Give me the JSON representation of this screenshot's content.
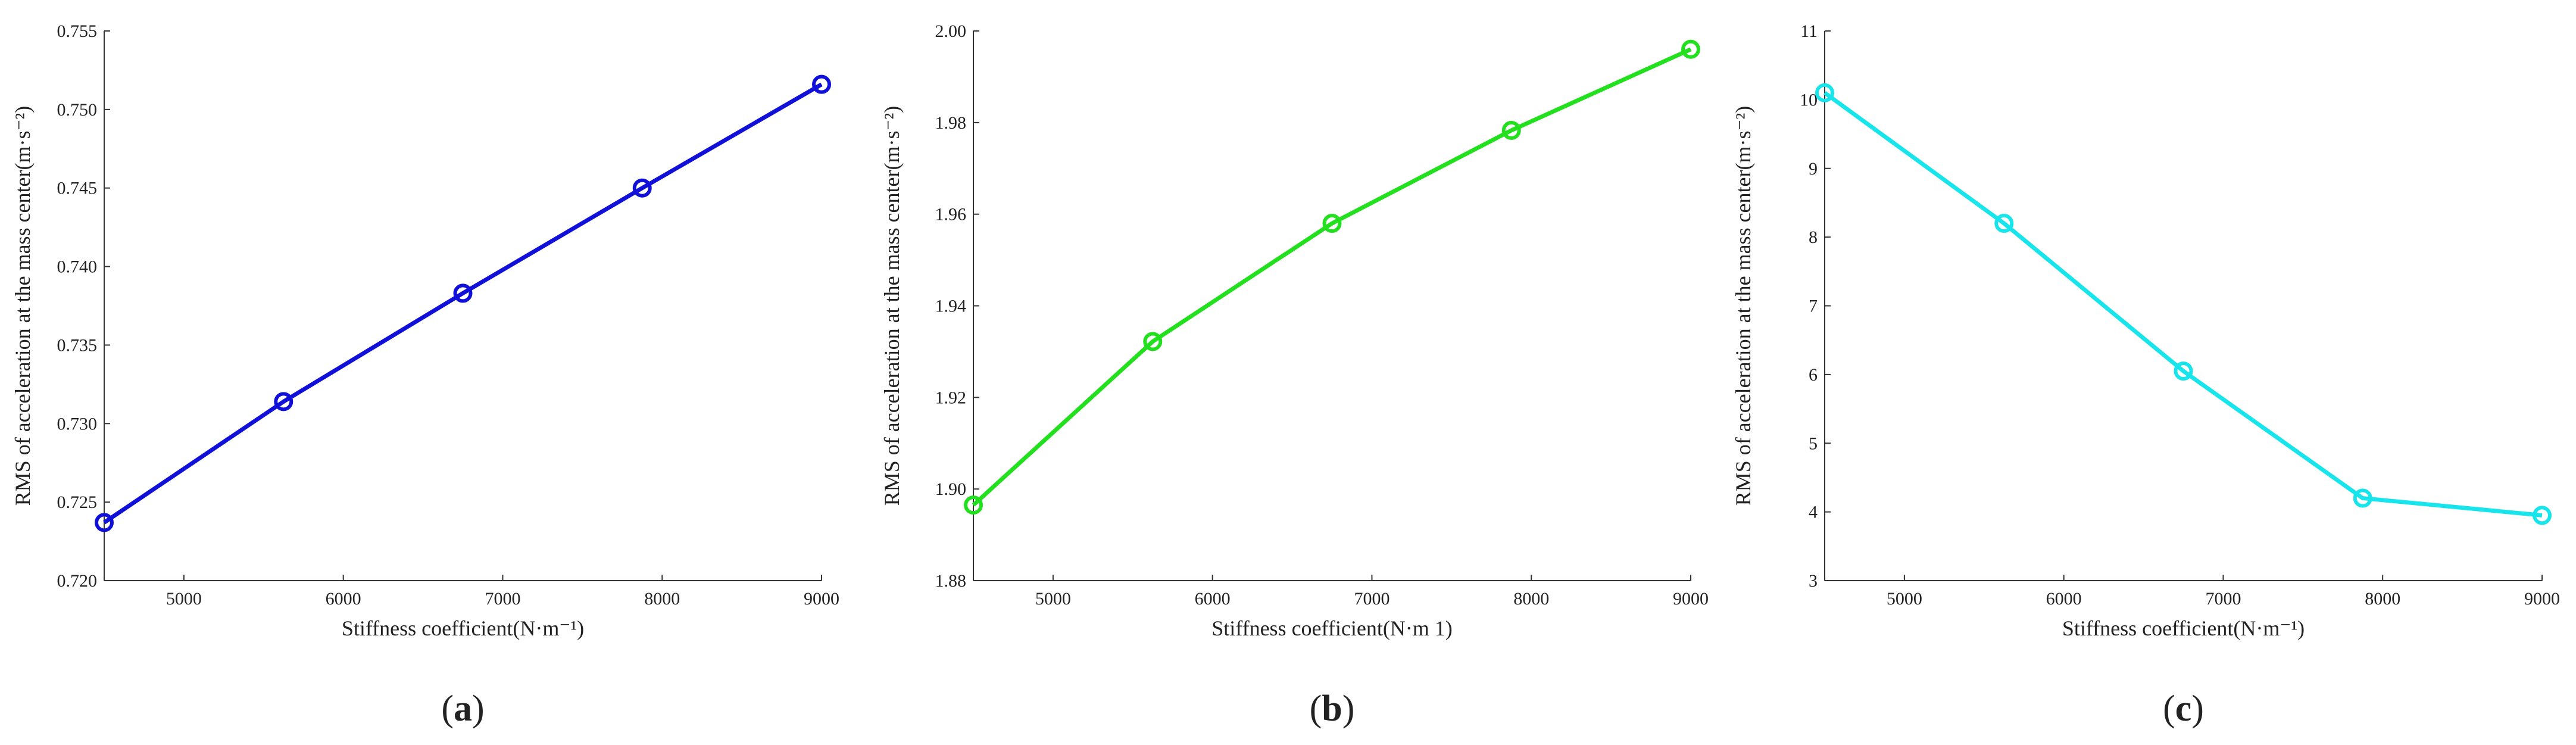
{
  "chart_data": [
    {
      "type": "line",
      "panel_label": "a",
      "color": "#1010d8",
      "marker": "circle",
      "xlabel": "Stiffness coefficient(N·m⁻¹)",
      "ylabel": "RMS of acceleration at the mass center(m·s⁻²)",
      "xlim": [
        4500,
        9000
      ],
      "ylim": [
        0.72,
        0.755
      ],
      "xticks": [
        "5000",
        "6000",
        "7000",
        "8000",
        "9000"
      ],
      "yticks": [
        "0.720",
        "0.725",
        "0.730",
        "0.735",
        "0.740",
        "0.745",
        "0.750",
        "0.755"
      ],
      "grid": false,
      "series": [
        {
          "x": [
            4500,
            5625,
            6750,
            7875,
            9000
          ],
          "y": [
            0.7237,
            0.7314,
            0.7383,
            0.745,
            0.7516
          ]
        }
      ]
    },
    {
      "type": "line",
      "panel_label": "b",
      "color": "#22e01e",
      "marker": "circle",
      "xlabel": "Stiffness coefficient(N·m  1)",
      "ylabel": "RMS of acceleration at the mass center(m·s⁻²)",
      "xlim": [
        4500,
        9000
      ],
      "ylim": [
        1.88,
        2.0
      ],
      "xticks": [
        "5000",
        "6000",
        "7000",
        "8000",
        "9000"
      ],
      "yticks": [
        "1.88",
        "1.90",
        "1.92",
        "1.94",
        "1.96",
        "1.98",
        "2.00"
      ],
      "grid": false,
      "series": [
        {
          "x": [
            4500,
            5625,
            6750,
            7875,
            9000
          ],
          "y": [
            1.8965,
            1.9322,
            1.958,
            1.9783,
            1.996
          ]
        }
      ]
    },
    {
      "type": "line",
      "panel_label": "c",
      "color": "#18e4ec",
      "marker": "circle",
      "xlabel": "Stiffness coefficient(N·m⁻¹)",
      "ylabel": "RMS of acceleration at the mass center(m·s⁻²)",
      "xlim": [
        4500,
        9000
      ],
      "ylim": [
        3,
        11
      ],
      "xticks": [
        "5000",
        "6000",
        "7000",
        "8000",
        "9000"
      ],
      "yticks": [
        "3",
        "4",
        "5",
        "6",
        "7",
        "8",
        "9",
        "10",
        "11"
      ],
      "grid": false,
      "series": [
        {
          "x": [
            4500,
            5625,
            6750,
            7875,
            9000
          ],
          "y": [
            10.1,
            8.2,
            6.05,
            4.2,
            3.95
          ]
        }
      ]
    }
  ]
}
